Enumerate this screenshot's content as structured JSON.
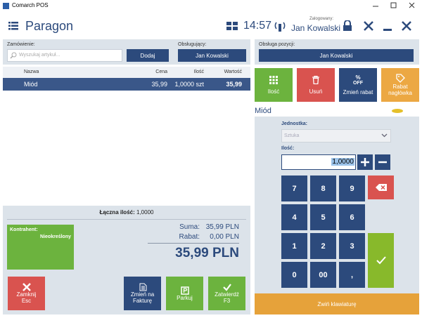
{
  "window": {
    "title": "Comarch POS"
  },
  "header": {
    "title": "Paragon",
    "time": "14:57",
    "logged_label": "Zalogowany:",
    "user": "Jan Kowalski"
  },
  "order": {
    "label": "Zamówienie:",
    "search_placeholder": "Wyszukaj artykuł...",
    "add_button": "Dodaj",
    "cashier_label": "Obsługujący:",
    "cashier": "Jan Kowalski"
  },
  "table": {
    "columns": [
      "Nazwa",
      "Cena",
      "Ilość",
      "Wartość"
    ],
    "rows": [
      [
        "Miód",
        "35,99",
        "1,0000 szt",
        "35,99"
      ]
    ]
  },
  "summary": {
    "total_qty_label": "Łączna ilość:",
    "total_qty": "1,0000",
    "customer_label": "Kontrahent:",
    "customer": "Nieokreślony",
    "sum_label": "Suma:",
    "sum": "35,99 PLN",
    "discount_label": "Rabat:",
    "discount": "0,00 PLN",
    "total": "35,99 PLN"
  },
  "bottom_buttons": [
    {
      "label": "Zamknij",
      "shortcut": "Esc"
    },
    {
      "label": "Zmień na Fakturę"
    },
    {
      "label": "Parkuj"
    },
    {
      "label": "Zatwierdź",
      "shortcut": "F3"
    }
  ],
  "position": {
    "label": "Obsługa pozycji:",
    "user": "Jan Kowalski",
    "actions": [
      "Ilość",
      "Usuń",
      "Zmień rabat",
      "Rabat nagłówka"
    ],
    "discount_icon": [
      "%",
      "OFF"
    ],
    "item": "Miód",
    "unit_label": "Jednostka:",
    "unit": "Sztuka",
    "qty_label": "Ilość:",
    "qty": "1,0000",
    "keypad": [
      [
        "7",
        "8",
        "9"
      ],
      [
        "4",
        "5",
        "6"
      ],
      [
        "1",
        "2",
        "3"
      ],
      [
        "0",
        "00",
        ","
      ]
    ],
    "collapse": "Zwiń klawiaturę"
  }
}
